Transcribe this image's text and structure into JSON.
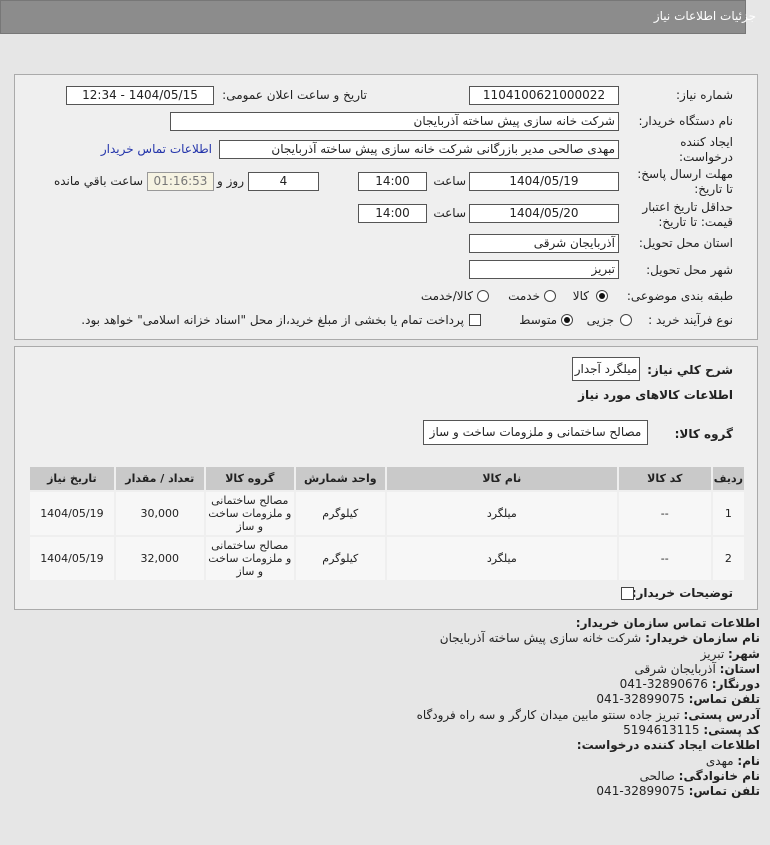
{
  "header": {
    "title": "جزئیات اطلاعات نیاز"
  },
  "form": {
    "need_number_label": "شماره نیاز:",
    "need_number": "1104100621000022",
    "announce_label": "تاریخ و ساعت اعلان عمومی:",
    "announce_value": "1404/05/15 - 12:34",
    "buyer_org_label": "نام دستگاه خریدار:",
    "buyer_org": "شرکت خانه سازی پیش ساخته آذربایجان",
    "creator_label_1": "ایجاد کننده",
    "creator_label_2": "درخواست:",
    "creator": "مهدی صالحی مدیر بازرگانی شرکت خانه سازی پیش ساخته آذربایجان",
    "contact_link": "اطلاعات تماس خریدار",
    "deadline_label_1": "مهلت ارسال پاسخ:",
    "deadline_label_2": "تا تاریخ:",
    "deadline_date": "1404/05/19",
    "time_label": "ساعت",
    "deadline_time": "14:00",
    "days": "4",
    "days_label": "روز و",
    "remaining": "01:16:53",
    "remaining_label": "ساعت باقي مانده",
    "validity_label_1": "حداقل تاریخ اعتبار",
    "validity_label_2": "قیمت: تا تاریخ:",
    "validity_date": "1404/05/20",
    "validity_time": "14:00",
    "province_label": "استان محل تحویل:",
    "province": "آذربایجان شرقی",
    "city_label": "شهر محل تحویل:",
    "city": "تبریز",
    "category_label": "طبقه بندی موضوعی:",
    "category_options": [
      "کالا",
      "خدمت",
      "کالا/خدمت"
    ],
    "category_selected": "کالا",
    "process_label": "نوع فرآیند خرید :",
    "process_options": [
      "جزیی",
      "متوسط"
    ],
    "process_selected": "متوسط",
    "payment_note": "پرداخت تمام یا بخشی از مبلغ خرید،از محل \"اسناد خزانه اسلامی\" خواهد بود.",
    "payment_checked": false
  },
  "need": {
    "summary_label": "شرح كلي نياز:",
    "summary": "میلگرد آجدار",
    "items_title": "اطلاعات کالاهای مورد نیاز",
    "group_label": "گروه کالا:",
    "group": "مصالح ساختمانی و ملزومات ساخت و ساز",
    "columns": [
      "ردیف",
      "کد کالا",
      "نام کالا",
      "واحد شمارش",
      "گروه کالا",
      "تعداد / مقدار",
      "تاریخ نیاز"
    ],
    "rows": [
      {
        "row": "1",
        "code": "--",
        "name": "میلگرد",
        "unit": "کیلوگرم",
        "group": "مصالح ساختمانی و ملزومات ساخت و ساز",
        "qty": "30,000",
        "date": "1404/05/19"
      },
      {
        "row": "2",
        "code": "--",
        "name": "میلگرد",
        "unit": "کیلوگرم",
        "group": "مصالح ساختمانی و ملزومات ساخت و ساز",
        "qty": "32,000",
        "date": "1404/05/19"
      }
    ],
    "buyer_notes_label": "توضیحات خریدار:"
  },
  "contact": {
    "title": "اطلاعات تماس سازمان خریدار:",
    "org_label": "نام سازمان خریدار:",
    "org": "شرکت خانه سازی پیش ساخته آذربایجان",
    "city_label": "شهر:",
    "city": "تبریز",
    "province_label": "استان:",
    "province": "آذربایجان شرقی",
    "fax_label": "دورنگار:",
    "fax": "041-32890676",
    "phone_label": "تلفن تماس:",
    "phone": "041-32899075",
    "address_label": "آدرس پستی:",
    "address": "تبریز جاده سنتو مابین میدان کارگر و سه راه فرودگاه",
    "postal_label": "کد پستی:",
    "postal": "5194613115",
    "creator_title": "اطلاعات ایجاد کننده درخواست:",
    "name_label": "نام:",
    "name": "مهدی",
    "family_label": "نام خانوادگی:",
    "family": "صالحی",
    "creator_phone_label": "تلفن تماس:",
    "creator_phone": "041-32899075"
  }
}
